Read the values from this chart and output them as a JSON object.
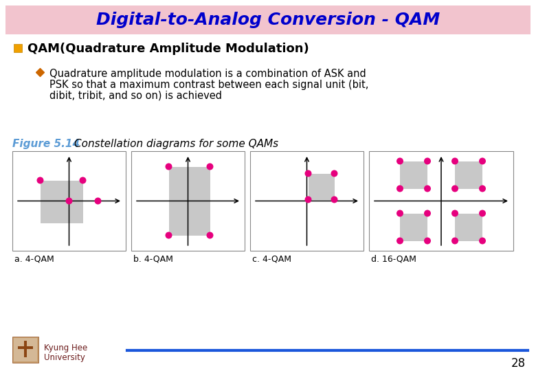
{
  "title": "Digital-to-Analog Conversion - QAM",
  "title_bg": "#f2c4ce",
  "title_color": "#0000cc",
  "title_fontsize": 18,
  "bullet1": "QAM(Quadrature Amplitude Modulation)",
  "bullet2_line1": "Quadrature amplitude modulation is a combination of ASK and",
  "bullet2_line2": "PSK so that a maximum contrast between each signal unit (bit,",
  "bullet2_line3": "dibit, tribit, and so on) is achieved",
  "figure_label": "Figure 5.14",
  "figure_caption": "Constellation diagrams for some QAMs",
  "diagram_labels": [
    "a. 4-QAM",
    "b. 4-QAM",
    "c. 4-QAM",
    "d. 16-QAM"
  ],
  "bg_color": "#ffffff",
  "dot_color": "#e6007e",
  "rect_color": "#c8c8c8",
  "footer_line_color": "#1a56db",
  "footer_text_color": "#6b1a1a",
  "footer_number": "28"
}
